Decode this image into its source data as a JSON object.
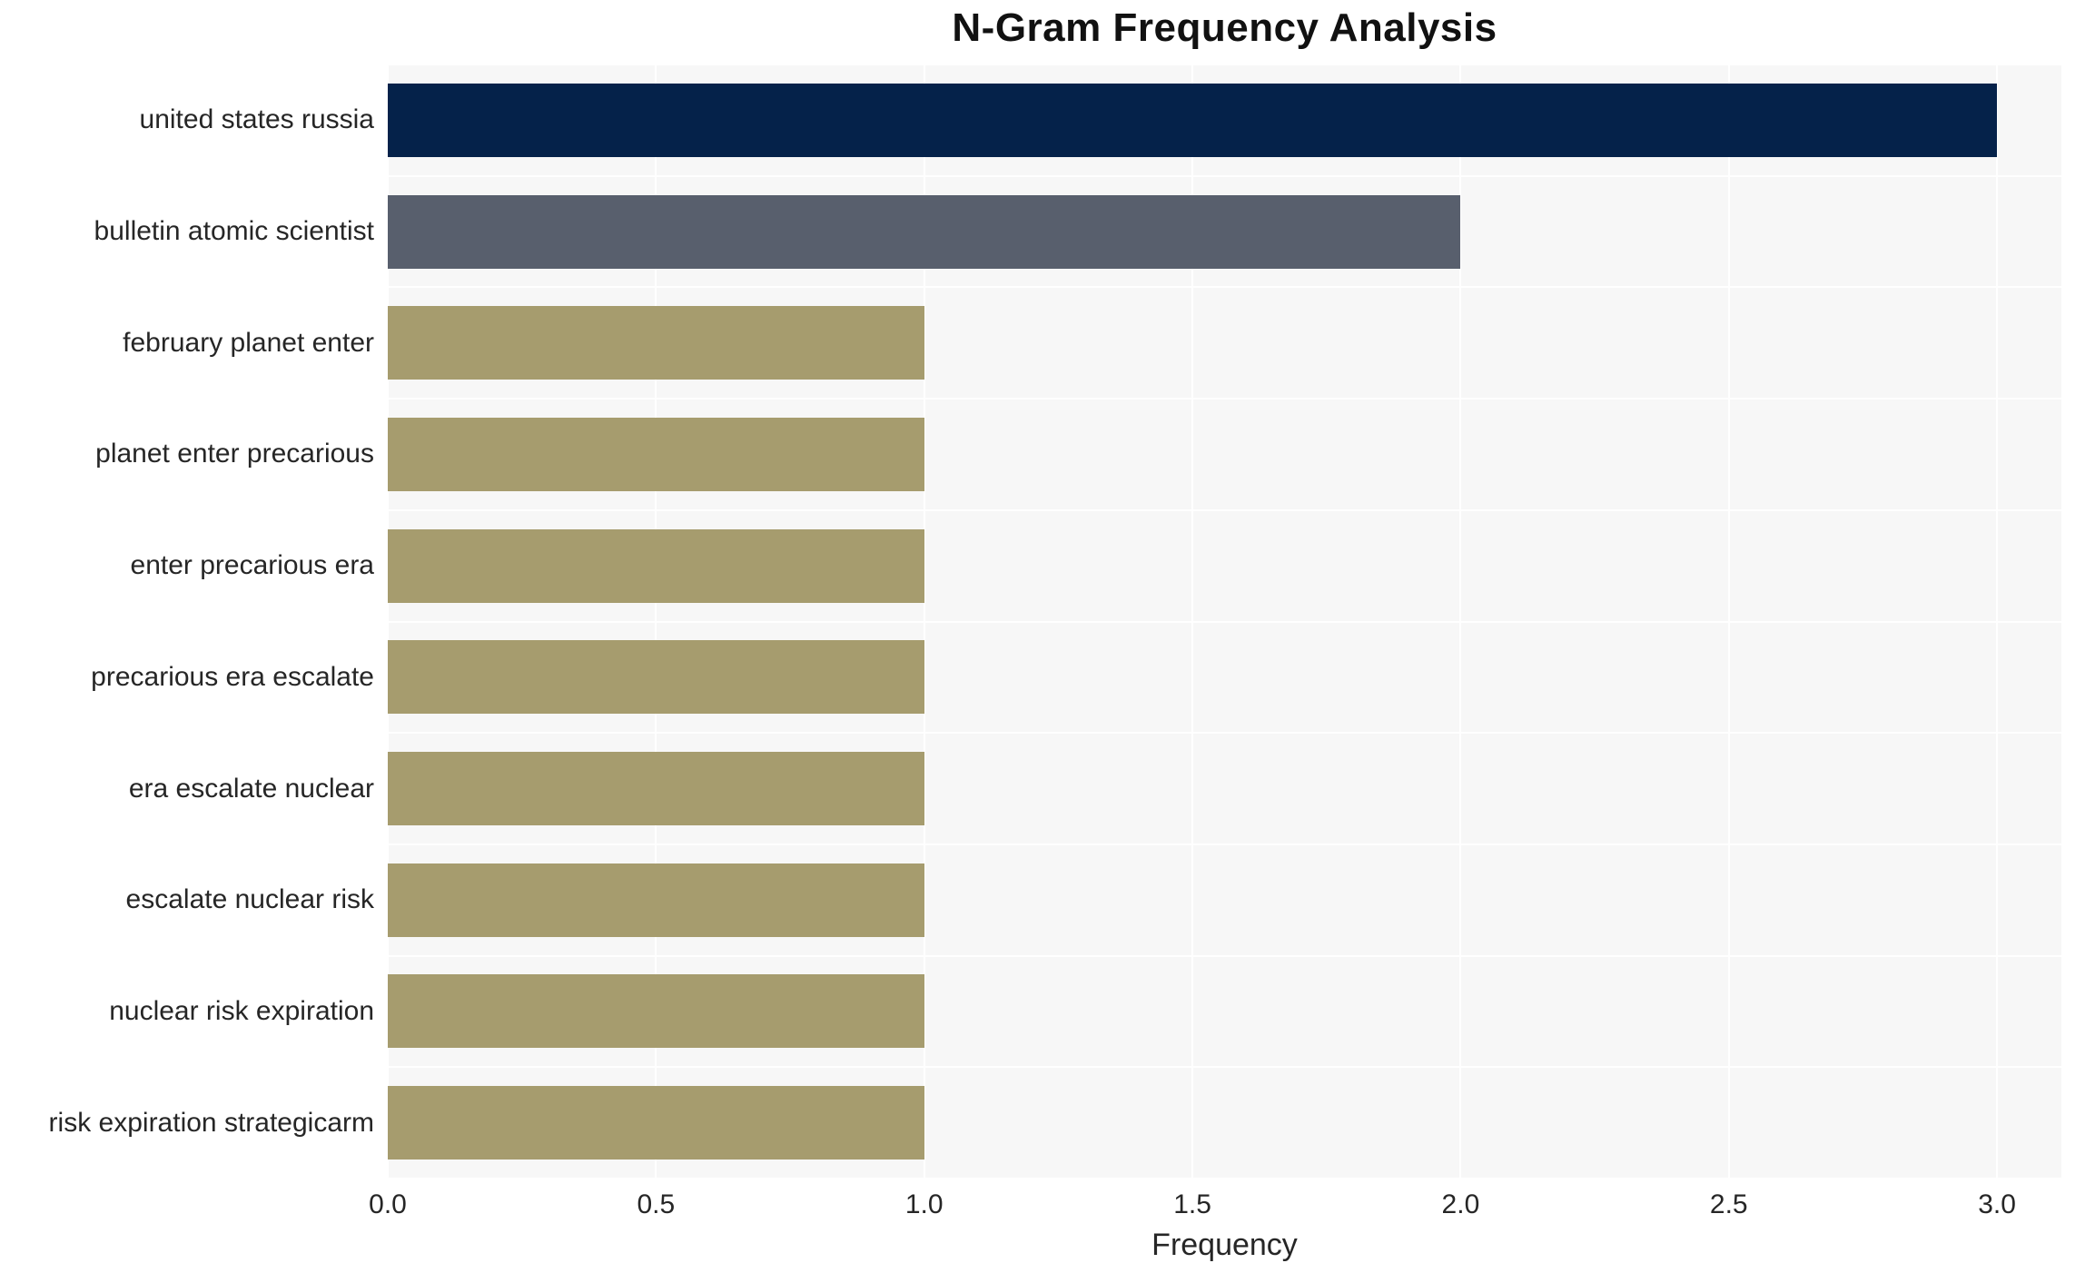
{
  "chart_data": {
    "type": "bar",
    "orientation": "horizontal",
    "title": "N-Gram Frequency Analysis",
    "xlabel": "Frequency",
    "ylabel": "",
    "categories": [
      "united states russia",
      "bulletin atomic scientist",
      "february planet enter",
      "planet enter precarious",
      "enter precarious era",
      "precarious era escalate",
      "era escalate nuclear",
      "escalate nuclear risk",
      "nuclear risk expiration",
      "risk expiration strategicarm"
    ],
    "values": [
      3,
      2,
      1,
      1,
      1,
      1,
      1,
      1,
      1,
      1
    ],
    "xlim": [
      0,
      3.12
    ],
    "xticks": [
      0.0,
      0.5,
      1.0,
      1.5,
      2.0,
      2.5,
      3.0
    ],
    "xtick_labels": [
      "0.0",
      "0.5",
      "1.0",
      "1.5",
      "2.0",
      "2.5",
      "3.0"
    ],
    "grid": true,
    "legend": false,
    "bar_colors": [
      "#05224a",
      "#585f6d",
      "#a69c6e",
      "#a69c6e",
      "#a69c6e",
      "#a69c6e",
      "#a69c6e",
      "#a69c6e",
      "#a69c6e",
      "#a69c6e"
    ],
    "plot_background": "#f7f7f7",
    "grid_color": "#ffffff",
    "text_color": "#262626"
  }
}
